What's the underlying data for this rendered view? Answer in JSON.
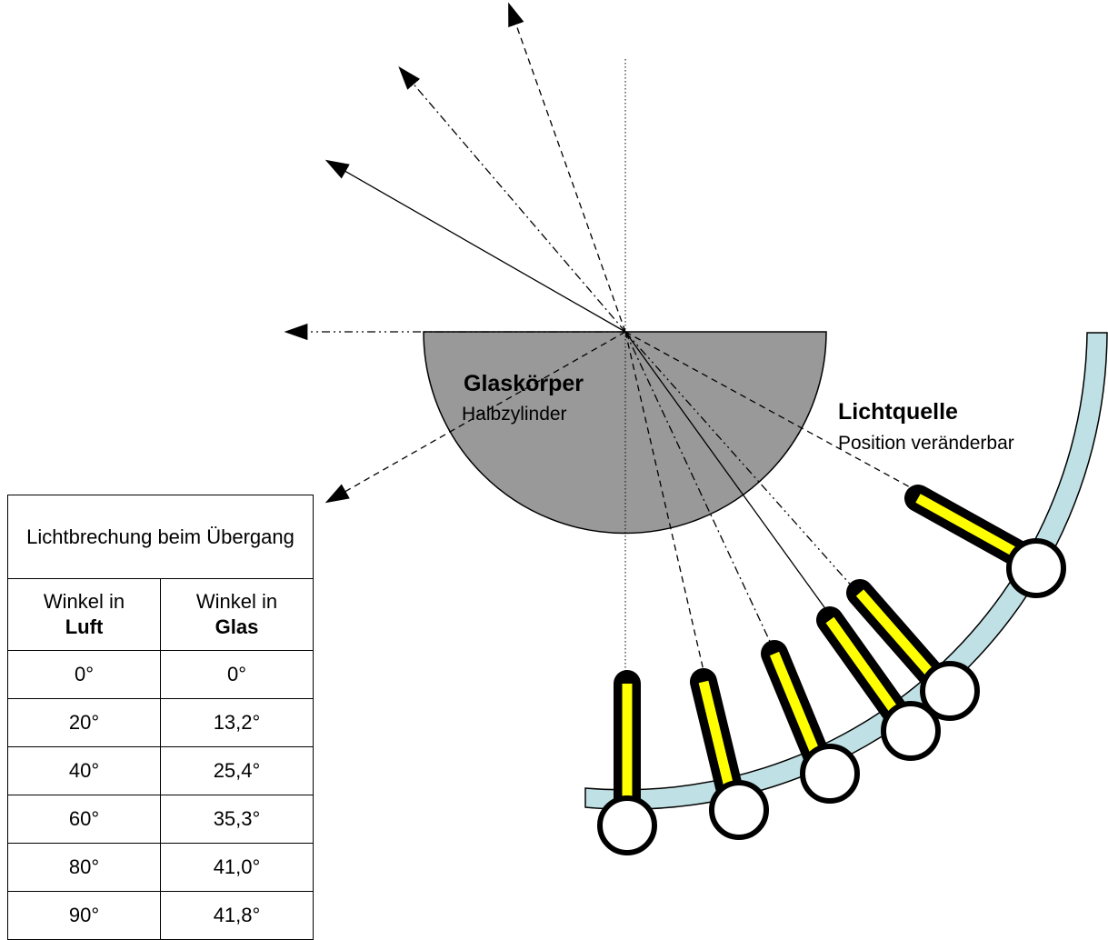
{
  "glass_title": "Glaskörper",
  "glass_subtitle": "Halbzylinder",
  "source_title": "Lichtquelle",
  "source_subtitle": "Position veränderbar",
  "table": {
    "title": "Lichtbrechung beim Übergang",
    "col1_head": "Winkel in",
    "col1_medium": "Luft",
    "col2_head": "Winkel in",
    "col2_medium": "Glas",
    "rows": [
      {
        "air": "0°",
        "glass": "0°"
      },
      {
        "air": "20°",
        "glass": "13,2°"
      },
      {
        "air": "40°",
        "glass": "25,4°"
      },
      {
        "air": "60°",
        "glass": "35,3°"
      },
      {
        "air": "80°",
        "glass": "41,0°"
      },
      {
        "air": "90°",
        "glass": "41,8°"
      }
    ]
  },
  "colors": {
    "glass_fill": "#999999",
    "rail_fill": "#bfe0e4",
    "lamp_yellow": "#ffff00"
  }
}
